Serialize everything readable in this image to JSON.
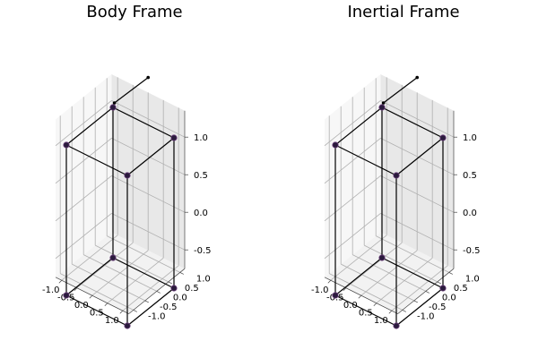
{
  "chart_data": [
    {
      "type": "scatter3d",
      "title": "Body Frame",
      "x_ticks": [
        "-1.0",
        "-0.5",
        "0.0",
        "0.5",
        "1.0"
      ],
      "y_ticks": [
        "-1.0",
        "-0.5",
        "0.0",
        "0.5",
        "1.0"
      ],
      "z_ticks": [
        "-0.5",
        "0.0",
        "0.5",
        "1.0"
      ],
      "xlim": [
        -1.2,
        1.2
      ],
      "ylim": [
        -1.2,
        1.2
      ],
      "zlim": [
        -0.75,
        1.35
      ],
      "grid": true,
      "vertices": [
        {
          "x": -1,
          "y": -1,
          "z": -1,
          "color": "#2b1b3d"
        },
        {
          "x": 1,
          "y": -1,
          "z": -1,
          "color": "#2b1b3d"
        },
        {
          "x": 1,
          "y": 1,
          "z": -1,
          "color": "#2b1b3d"
        },
        {
          "x": -1,
          "y": 1,
          "z": -1,
          "color": "#2b1b3d"
        },
        {
          "x": -1,
          "y": -1,
          "z": 1,
          "color": "#2b1b3d"
        },
        {
          "x": 1,
          "y": -1,
          "z": 1,
          "color": "#2b1b3d"
        },
        {
          "x": 1,
          "y": 1,
          "z": 1,
          "color": "#2b1b3d"
        },
        {
          "x": -1,
          "y": 1,
          "z": 1,
          "color": "#2b1b3d"
        }
      ],
      "edges": [
        [
          0,
          1
        ],
        [
          1,
          2
        ],
        [
          2,
          3
        ],
        [
          3,
          0
        ],
        [
          4,
          5
        ],
        [
          5,
          6
        ],
        [
          6,
          7
        ],
        [
          7,
          4
        ],
        [
          0,
          4
        ],
        [
          1,
          5
        ],
        [
          2,
          6
        ],
        [
          3,
          7
        ]
      ],
      "vector": {
        "from": {
          "x": -0.8,
          "y": 0.8,
          "z": 1.15
        },
        "to": {
          "x": 0,
          "y": 1.2,
          "z": 1.55
        },
        "color": "#000000"
      }
    },
    {
      "type": "scatter3d",
      "title": "Inertial Frame",
      "x_ticks": [
        "-1.0",
        "-0.5",
        "0.0",
        "0.5",
        "1.0"
      ],
      "y_ticks": [
        "-1.0",
        "-0.5",
        "0.0",
        "0.5",
        "1.0"
      ],
      "z_ticks": [
        "-0.5",
        "0.0",
        "0.5",
        "1.0"
      ],
      "xlim": [
        -1.2,
        1.2
      ],
      "ylim": [
        -1.2,
        1.2
      ],
      "zlim": [
        -0.75,
        1.35
      ],
      "grid": true,
      "vertices": [
        {
          "x": -1,
          "y": -1,
          "z": -1,
          "color": "#2b1b3d"
        },
        {
          "x": 1,
          "y": -1,
          "z": -1,
          "color": "#2b1b3d"
        },
        {
          "x": 1,
          "y": 1,
          "z": -1,
          "color": "#2b1b3d"
        },
        {
          "x": -1,
          "y": 1,
          "z": -1,
          "color": "#2b1b3d"
        },
        {
          "x": -1,
          "y": -1,
          "z": 1,
          "color": "#2b1b3d"
        },
        {
          "x": 1,
          "y": -1,
          "z": 1,
          "color": "#2b1b3d"
        },
        {
          "x": 1,
          "y": 1,
          "z": 1,
          "color": "#2b1b3d"
        },
        {
          "x": -1,
          "y": 1,
          "z": 1,
          "color": "#2b1b3d"
        }
      ],
      "edges": [
        [
          0,
          1
        ],
        [
          1,
          2
        ],
        [
          2,
          3
        ],
        [
          3,
          0
        ],
        [
          4,
          5
        ],
        [
          5,
          6
        ],
        [
          6,
          7
        ],
        [
          7,
          4
        ],
        [
          0,
          4
        ],
        [
          1,
          5
        ],
        [
          2,
          6
        ],
        [
          3,
          7
        ]
      ],
      "vector": {
        "from": {
          "x": -0.8,
          "y": 0.8,
          "z": 1.15
        },
        "to": {
          "x": 0,
          "y": 1.2,
          "z": 1.55
        },
        "color": "#000000"
      }
    }
  ],
  "style": {
    "pane_colors": [
      "#f2f2f2",
      "#e8e8e8",
      "#f7f7f7"
    ],
    "vertex_colors": [
      "#2b1b3d",
      "#6b3f7a",
      "#8e6aa0"
    ]
  }
}
